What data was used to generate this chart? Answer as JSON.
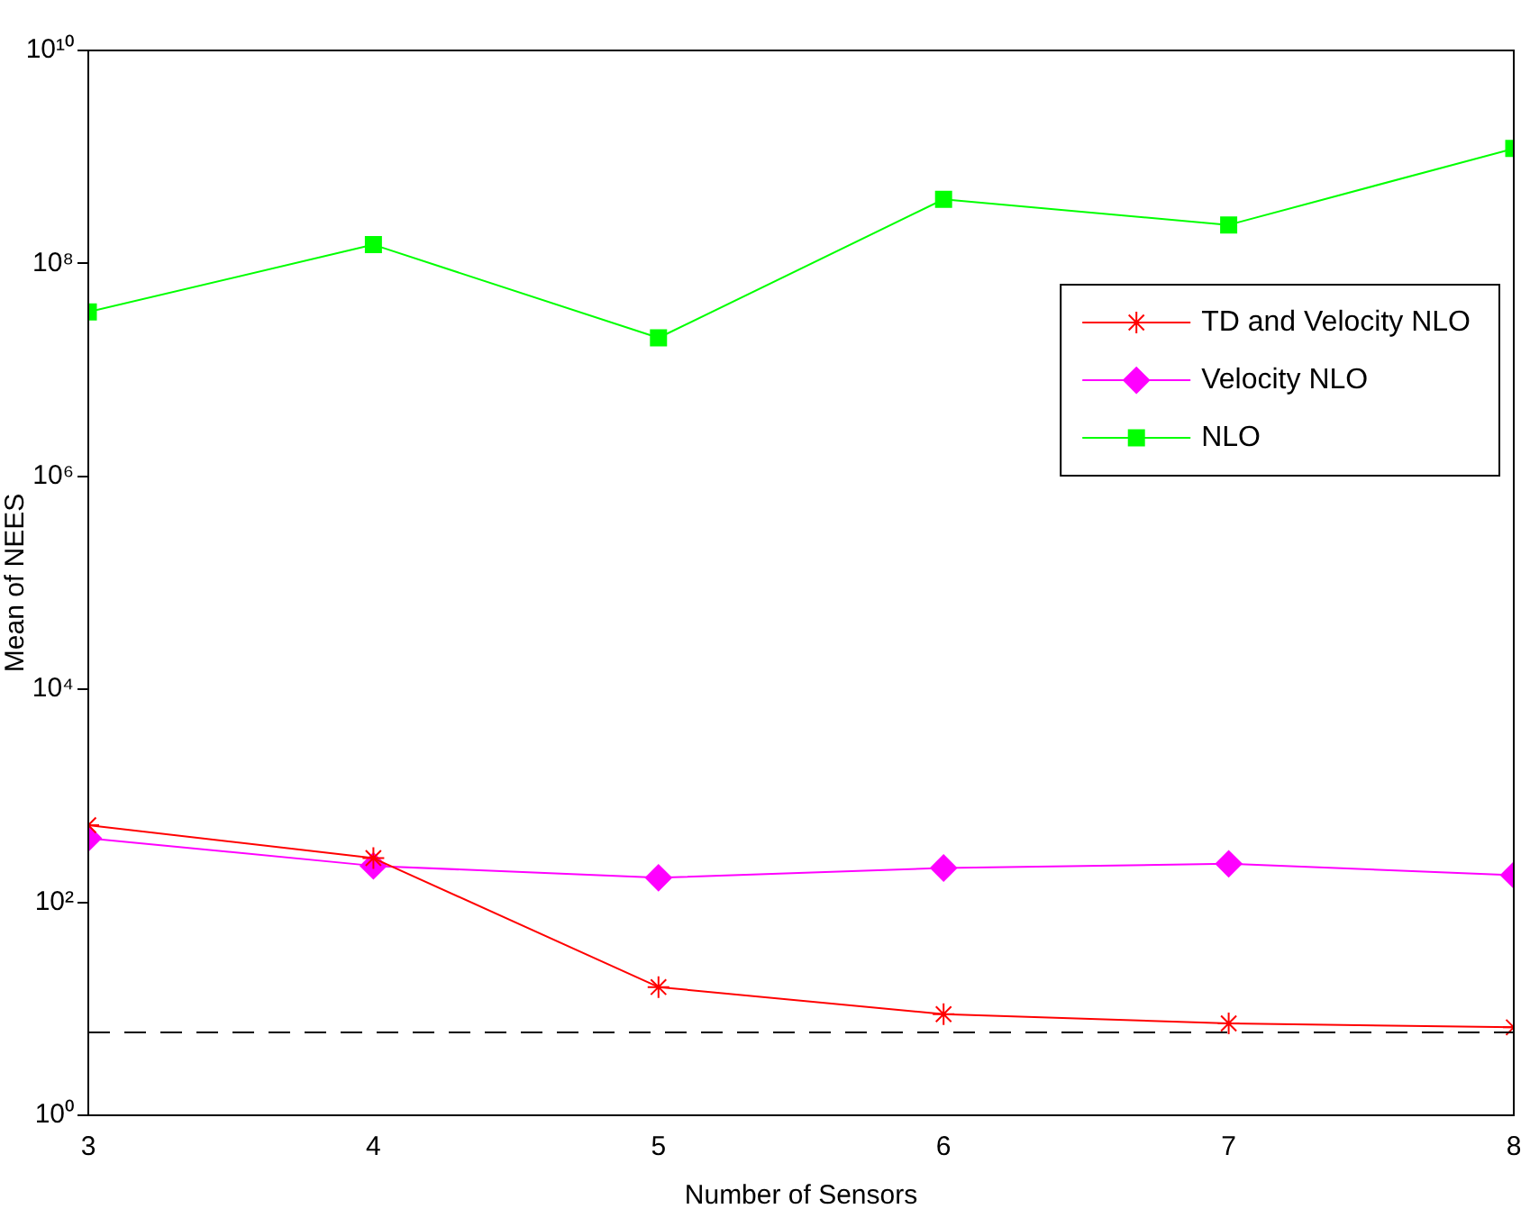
{
  "chart_data": {
    "type": "line",
    "xlabel": "Number of Sensors",
    "ylabel": "Mean of NEES",
    "x": [
      3,
      4,
      5,
      6,
      7,
      8
    ],
    "log": "y",
    "xlim": [
      3,
      8
    ],
    "xticks": [
      3,
      4,
      5,
      6,
      7,
      8
    ],
    "ylim": [
      1,
      10000000000
    ],
    "yticks": [
      {
        "value": 1,
        "label": "10⁰"
      },
      {
        "value": 100,
        "label": "10²"
      },
      {
        "value": 10000,
        "label": "10⁴"
      },
      {
        "value": 1000000,
        "label": "10⁶"
      },
      {
        "value": 100000000,
        "label": "10⁸"
      },
      {
        "value": 10000000000,
        "label": "10¹⁰"
      }
    ],
    "series": [
      {
        "name": "TD and Velocity NLO",
        "color": "#ff0000",
        "marker": "cross",
        "values": [
          530,
          260,
          16,
          8.9,
          7.3,
          6.7
        ]
      },
      {
        "name": "Velocity NLO",
        "color": "#ff00ff",
        "marker": "diamond",
        "values": [
          400,
          220,
          170,
          210,
          230,
          180
        ]
      },
      {
        "name": "NLO",
        "color": "#00ff00",
        "marker": "square",
        "values": [
          35000000,
          150000000,
          20000000,
          400000000,
          230000000,
          1200000000
        ]
      }
    ],
    "ref_lines": [
      {
        "axis": "y",
        "value": 6,
        "color": "#000000",
        "line_style": "dashed"
      }
    ],
    "legend": "right",
    "grid": false
  }
}
